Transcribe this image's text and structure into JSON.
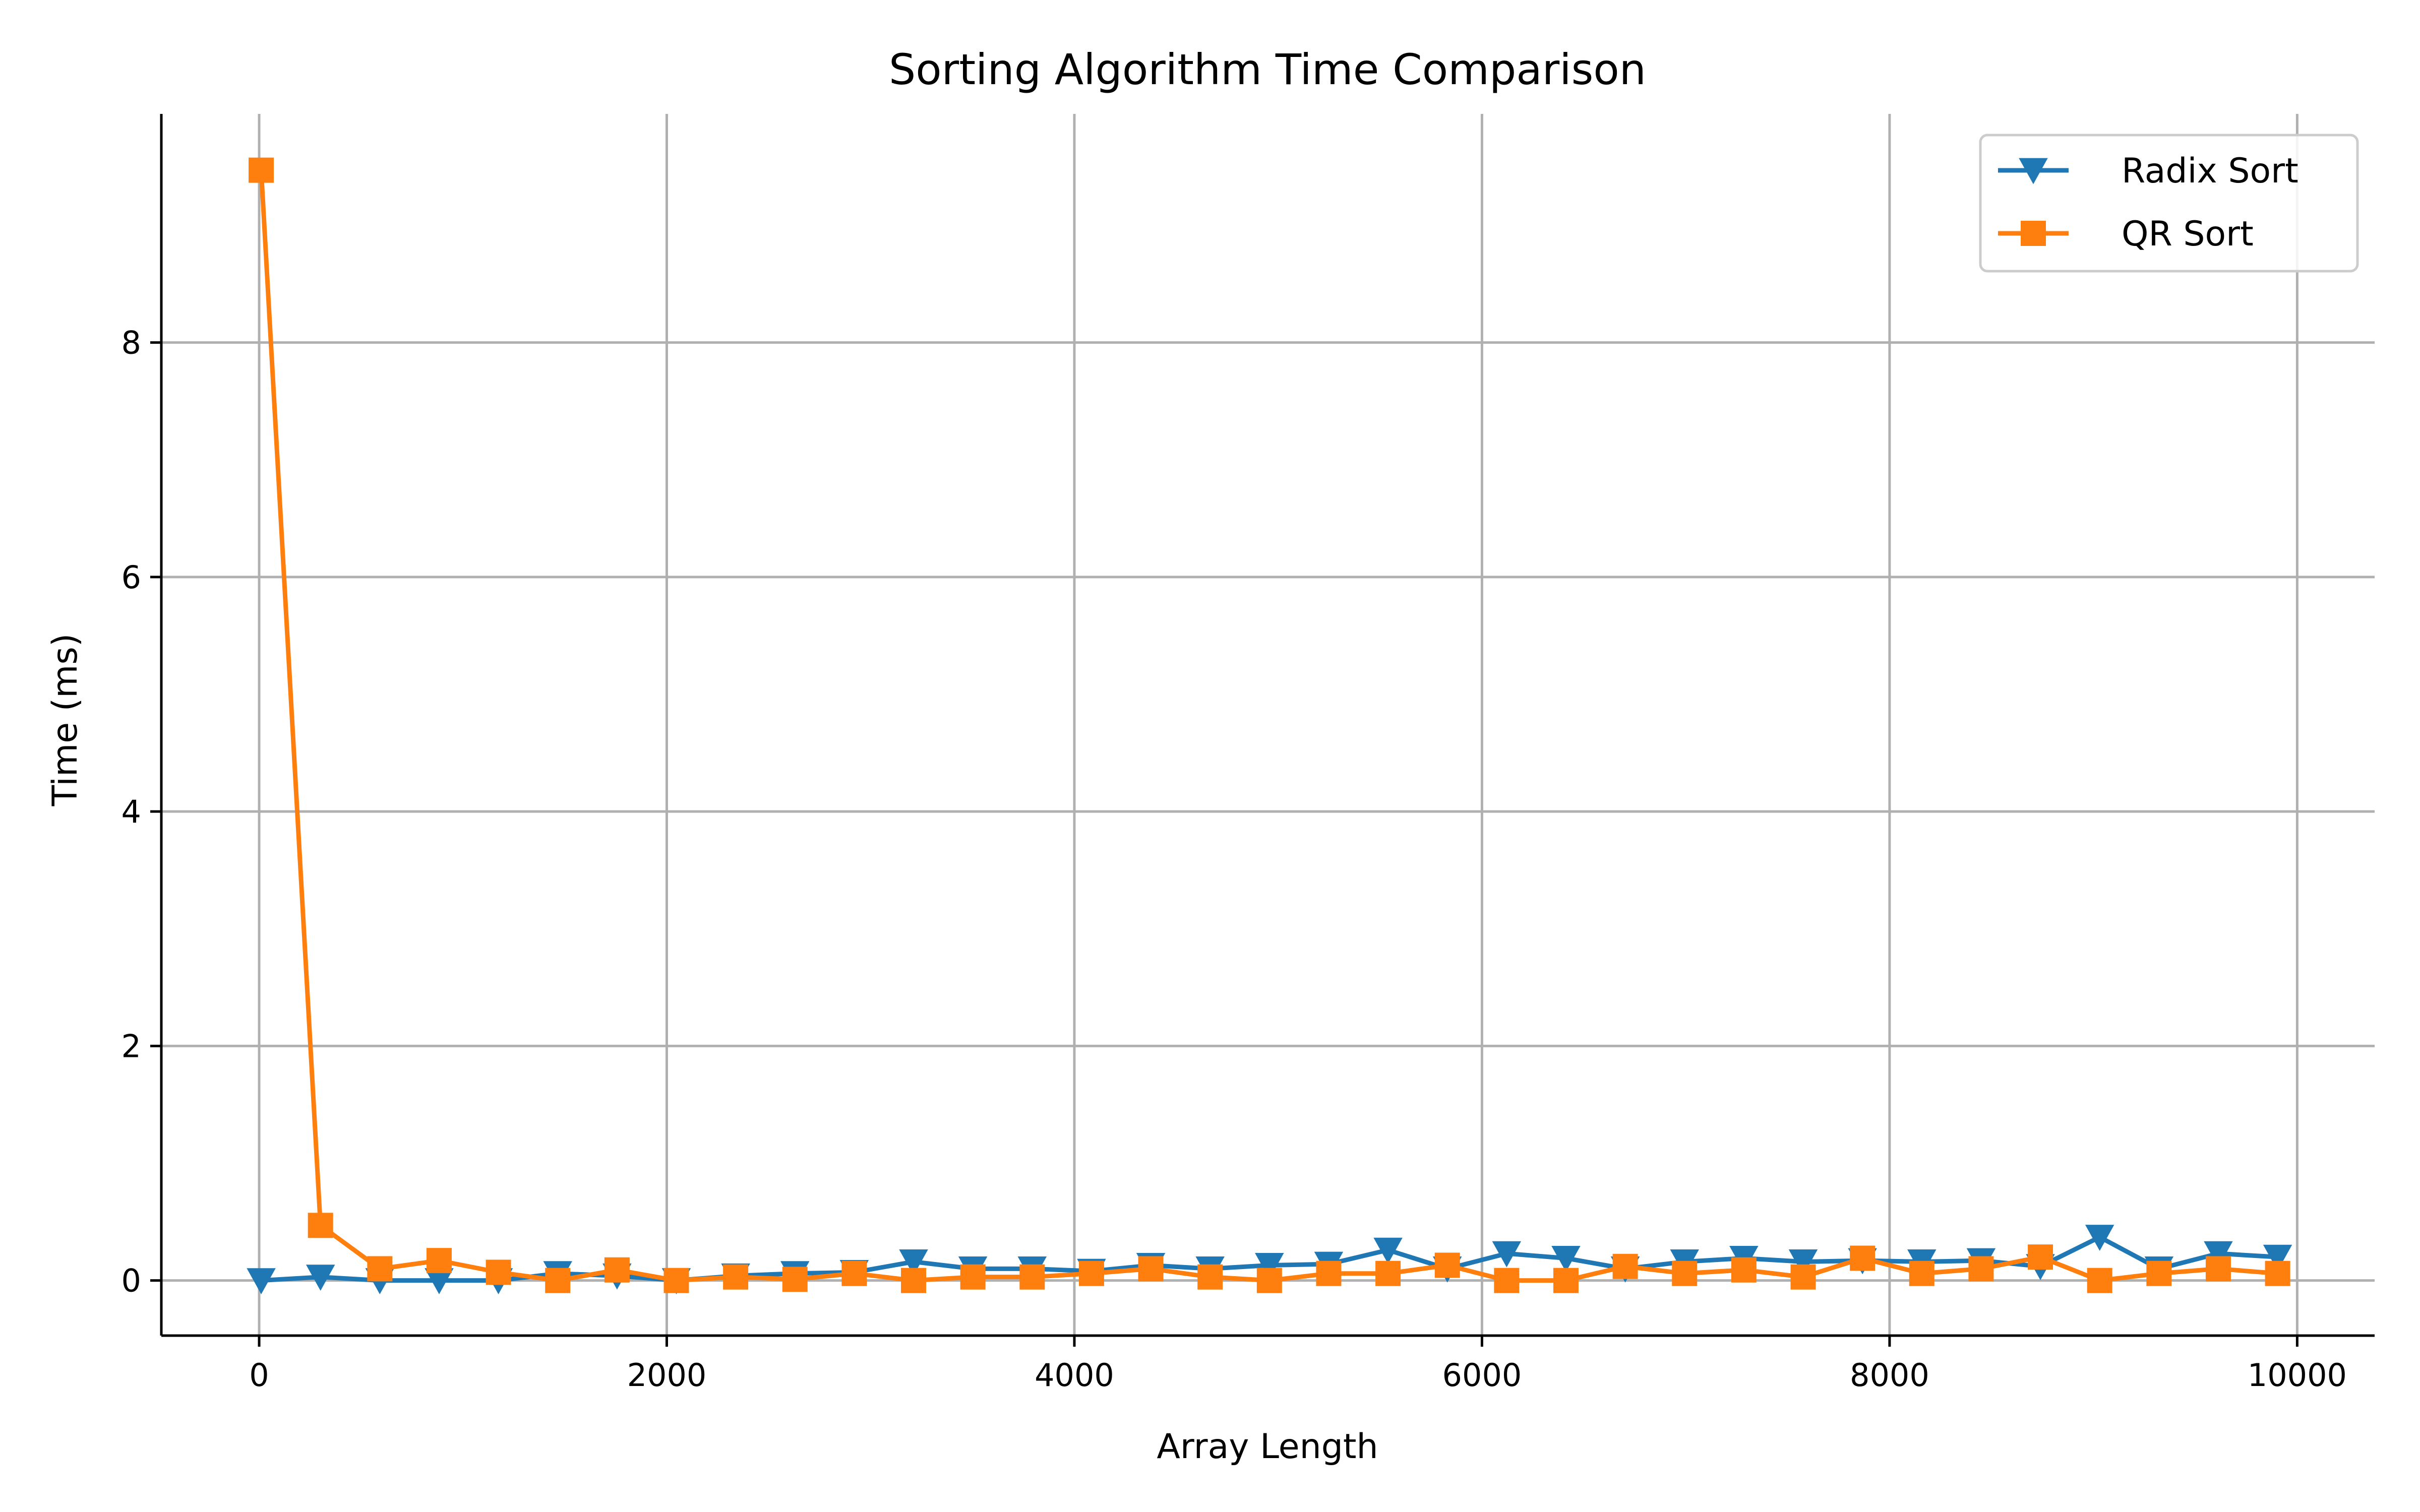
{
  "chart_data": {
    "type": "line",
    "title": "Sorting Algorithm Time Comparison",
    "xlabel": "Array Length",
    "ylabel": "Time (ms)",
    "xlim": [
      -480,
      10380
    ],
    "ylim": [
      -0.47,
      9.95
    ],
    "xticks": [
      0,
      2000,
      4000,
      6000,
      8000,
      10000
    ],
    "yticks": [
      0,
      2,
      4,
      6,
      8
    ],
    "grid": true,
    "legend_position": "top-right",
    "x": [
      10,
      301,
      592,
      883,
      1174,
      1465,
      1756,
      2047,
      2338,
      2629,
      2920,
      3211,
      3502,
      3793,
      4084,
      4375,
      4666,
      4957,
      5248,
      5539,
      5830,
      6121,
      6412,
      6703,
      6994,
      7285,
      7576,
      7867,
      8158,
      8449,
      8740,
      9031,
      9322,
      9613,
      9904
    ],
    "series": [
      {
        "name": "Radix Sort",
        "color": "#1f77b4",
        "marker": "triangle-down",
        "values": [
          0.0,
          0.03,
          0.0,
          0.0,
          0.0,
          0.06,
          0.04,
          0.0,
          0.04,
          0.06,
          0.07,
          0.16,
          0.1,
          0.1,
          0.08,
          0.13,
          0.1,
          0.13,
          0.14,
          0.26,
          0.1,
          0.23,
          0.19,
          0.1,
          0.16,
          0.19,
          0.16,
          0.17,
          0.16,
          0.17,
          0.12,
          0.37,
          0.1,
          0.23,
          0.2
        ]
      },
      {
        "name": "QR Sort",
        "color": "#ff7f0e",
        "marker": "square",
        "values": [
          9.47,
          0.47,
          0.1,
          0.17,
          0.07,
          0.0,
          0.09,
          0.0,
          0.03,
          0.01,
          0.06,
          0.0,
          0.03,
          0.03,
          0.06,
          0.1,
          0.03,
          0.0,
          0.06,
          0.06,
          0.13,
          0.0,
          0.0,
          0.12,
          0.06,
          0.09,
          0.03,
          0.19,
          0.06,
          0.1,
          0.2,
          0.0,
          0.06,
          0.1,
          0.06
        ]
      }
    ]
  }
}
